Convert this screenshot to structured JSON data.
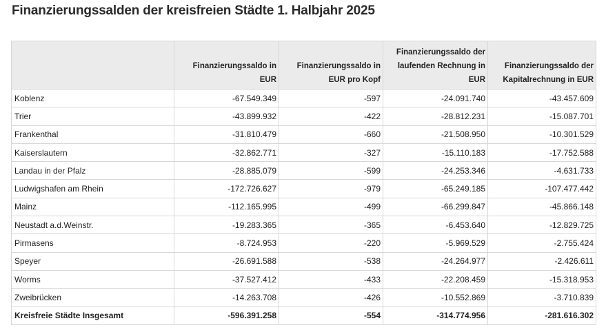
{
  "title": "Finanzierungssalden der kreisfreien Städte 1. Halbjahr 2025",
  "columns": [
    "",
    "Finanzierungssaldo in EUR",
    "Finanzierungssaldo in EUR pro Kopf",
    "Finanzierungssaldo der laufenden Rechnung in EUR",
    "Finanzierungssaldo der Kapitalrechnung in EUR"
  ],
  "rows": [
    [
      "Koblenz",
      "-67.549.349",
      "-597",
      "-24.091.740",
      "-43.457.609"
    ],
    [
      "Trier",
      "-43.899.932",
      "-422",
      "-28.812.231",
      "-15.087.701"
    ],
    [
      "Frankenthal",
      "-31.810.479",
      "-660",
      "-21.508.950",
      "-10.301.529"
    ],
    [
      "Kaiserslautern",
      "-32.862.771",
      "-327",
      "-15.110.183",
      "-17.752.588"
    ],
    [
      "Landau in der Pfalz",
      "-28.885.079",
      "-599",
      "-24.253.346",
      "-4.631.733"
    ],
    [
      "Ludwigshafen am Rhein",
      "-172.726.627",
      "-979",
      "-65.249.185",
      "-107.477.442"
    ],
    [
      "Mainz",
      "-112.165.995",
      "-499",
      "-66.299.847",
      "-45.866.148"
    ],
    [
      "Neustadt a.d.Weinstr.",
      "-19.283.365",
      "-365",
      "-6.453.640",
      "-12.829.725"
    ],
    [
      "Pirmasens",
      "-8.724.953",
      "-220",
      "-5.969.529",
      "-2.755.424"
    ],
    [
      "Speyer",
      "-26.691.588",
      "-538",
      "-24.264.977",
      "-2.426.611"
    ],
    [
      "Worms",
      "-37.527.412",
      "-433",
      "-22.208.459",
      "-15.318.953"
    ],
    [
      "Zweibrücken",
      "-14.263.708",
      "-426",
      "-10.552.869",
      "-3.710.839"
    ]
  ],
  "total": [
    "Kreisfreie Städte Insgesamt",
    "-596.391.258",
    "-554",
    "-314.774.956",
    "-281.616.302"
  ]
}
